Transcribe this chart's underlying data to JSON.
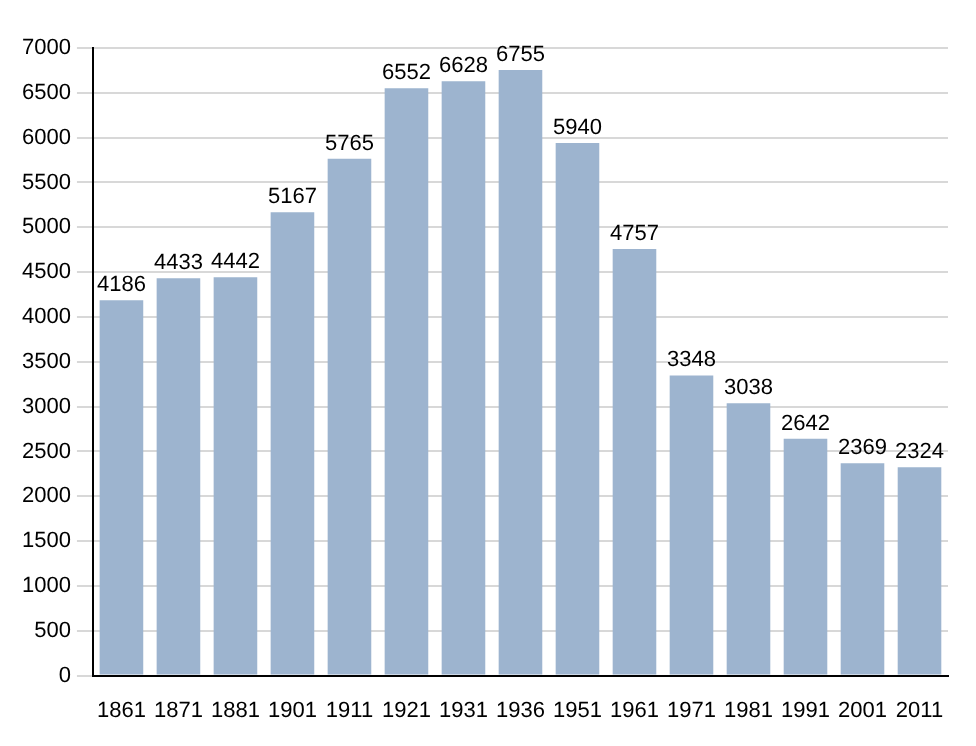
{
  "chart_data": {
    "type": "bar",
    "categories": [
      "1861",
      "1871",
      "1881",
      "1901",
      "1911",
      "1921",
      "1931",
      "1936",
      "1951",
      "1961",
      "1971",
      "1981",
      "1991",
      "2001",
      "2011"
    ],
    "values": [
      4186,
      4433,
      4442,
      5167,
      5765,
      6552,
      6628,
      6755,
      5940,
      4757,
      3348,
      3038,
      2642,
      2369,
      2324
    ],
    "color": "#9db4cf",
    "ylim": [
      0,
      7000
    ],
    "yticks": [
      0,
      500,
      1000,
      1500,
      2000,
      2500,
      3000,
      3500,
      4000,
      4500,
      5000,
      5500,
      6000,
      6500,
      7000
    ],
    "grid": "y",
    "data_labels": true
  }
}
